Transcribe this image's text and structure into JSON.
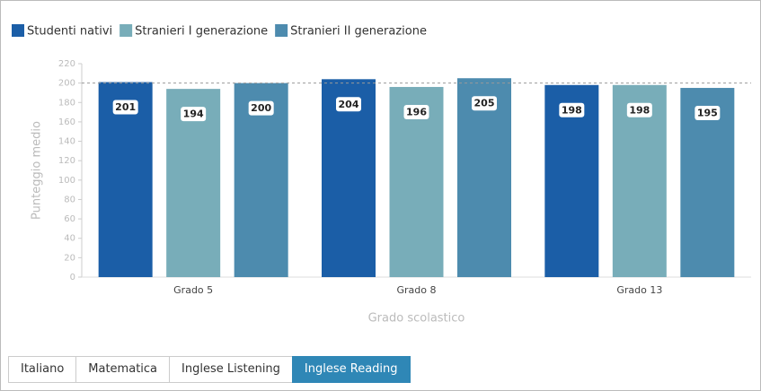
{
  "chart_data": {
    "type": "bar",
    "categories": [
      "Grado 5",
      "Grado 8",
      "Grado 13"
    ],
    "series": [
      {
        "name": "Studenti nativi",
        "color": "#1b5ea7",
        "values": [
          201,
          204,
          198
        ]
      },
      {
        "name": "Stranieri I generazione",
        "color": "#78adb9",
        "values": [
          194,
          196,
          198
        ]
      },
      {
        "name": "Stranieri II generazione",
        "color": "#4d8bae",
        "values": [
          200,
          205,
          195
        ]
      }
    ],
    "ylim": [
      0,
      220
    ],
    "yticks": [
      0,
      20,
      40,
      60,
      80,
      100,
      120,
      140,
      160,
      180,
      200,
      220
    ],
    "xlabel": "Grado scolastico",
    "ylabel": "Punteggio medio",
    "reference_line": 200,
    "legend": "top-left"
  },
  "tabs": [
    "Italiano",
    "Matematica",
    "Inglese Listening",
    "Inglese Reading"
  ],
  "active_tab": 3
}
